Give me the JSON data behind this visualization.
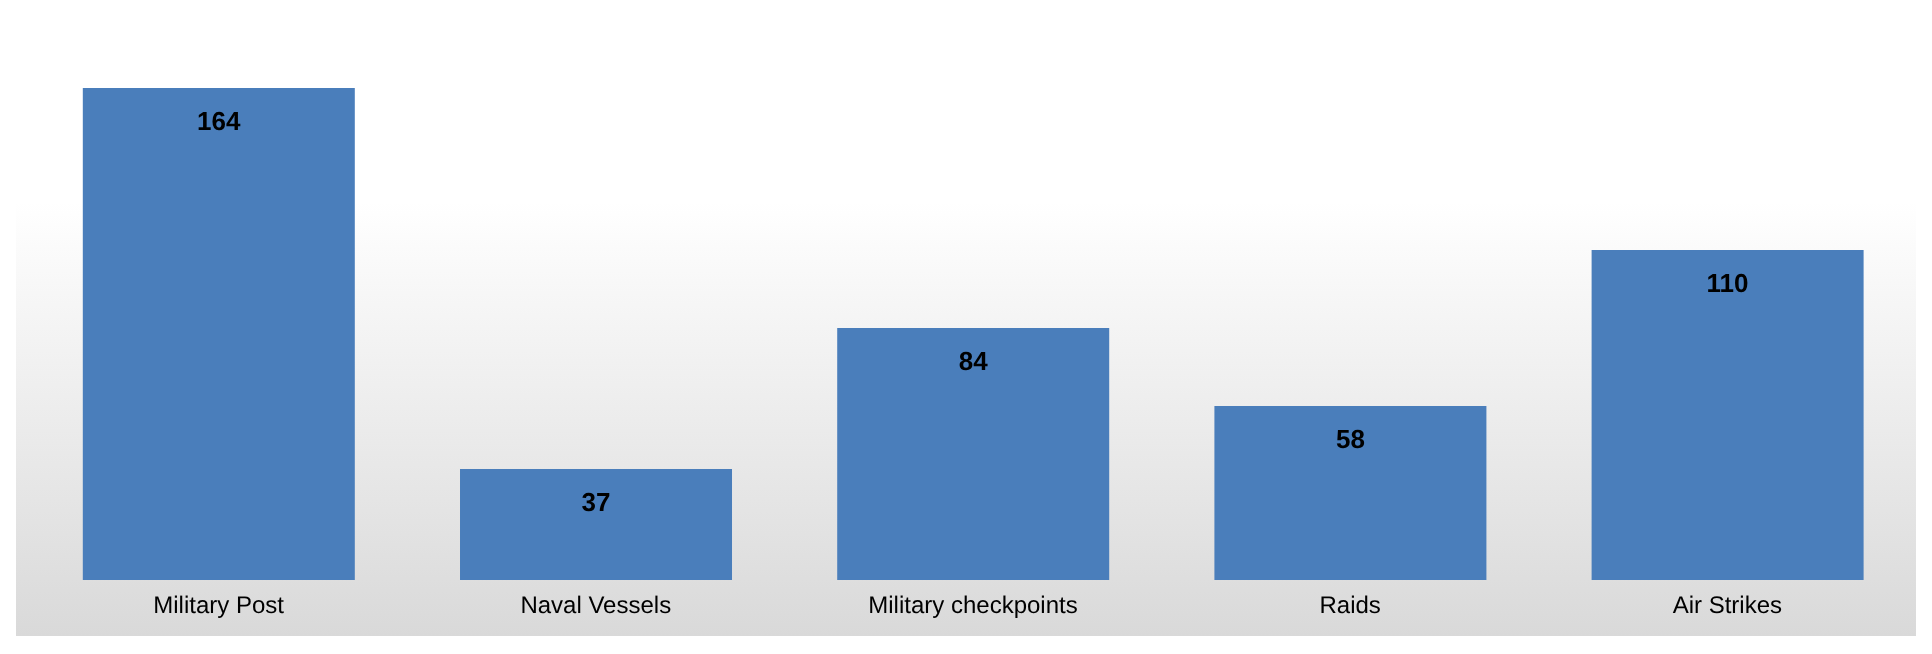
{
  "chart_data": {
    "type": "bar",
    "categories": [
      "Military Post",
      "Naval Vessels",
      "Military checkpoints",
      "Raids",
      "Air Strikes"
    ],
    "values": [
      164,
      37,
      84,
      58,
      110
    ],
    "color": "#4a7ebb",
    "data_labels": true
  }
}
